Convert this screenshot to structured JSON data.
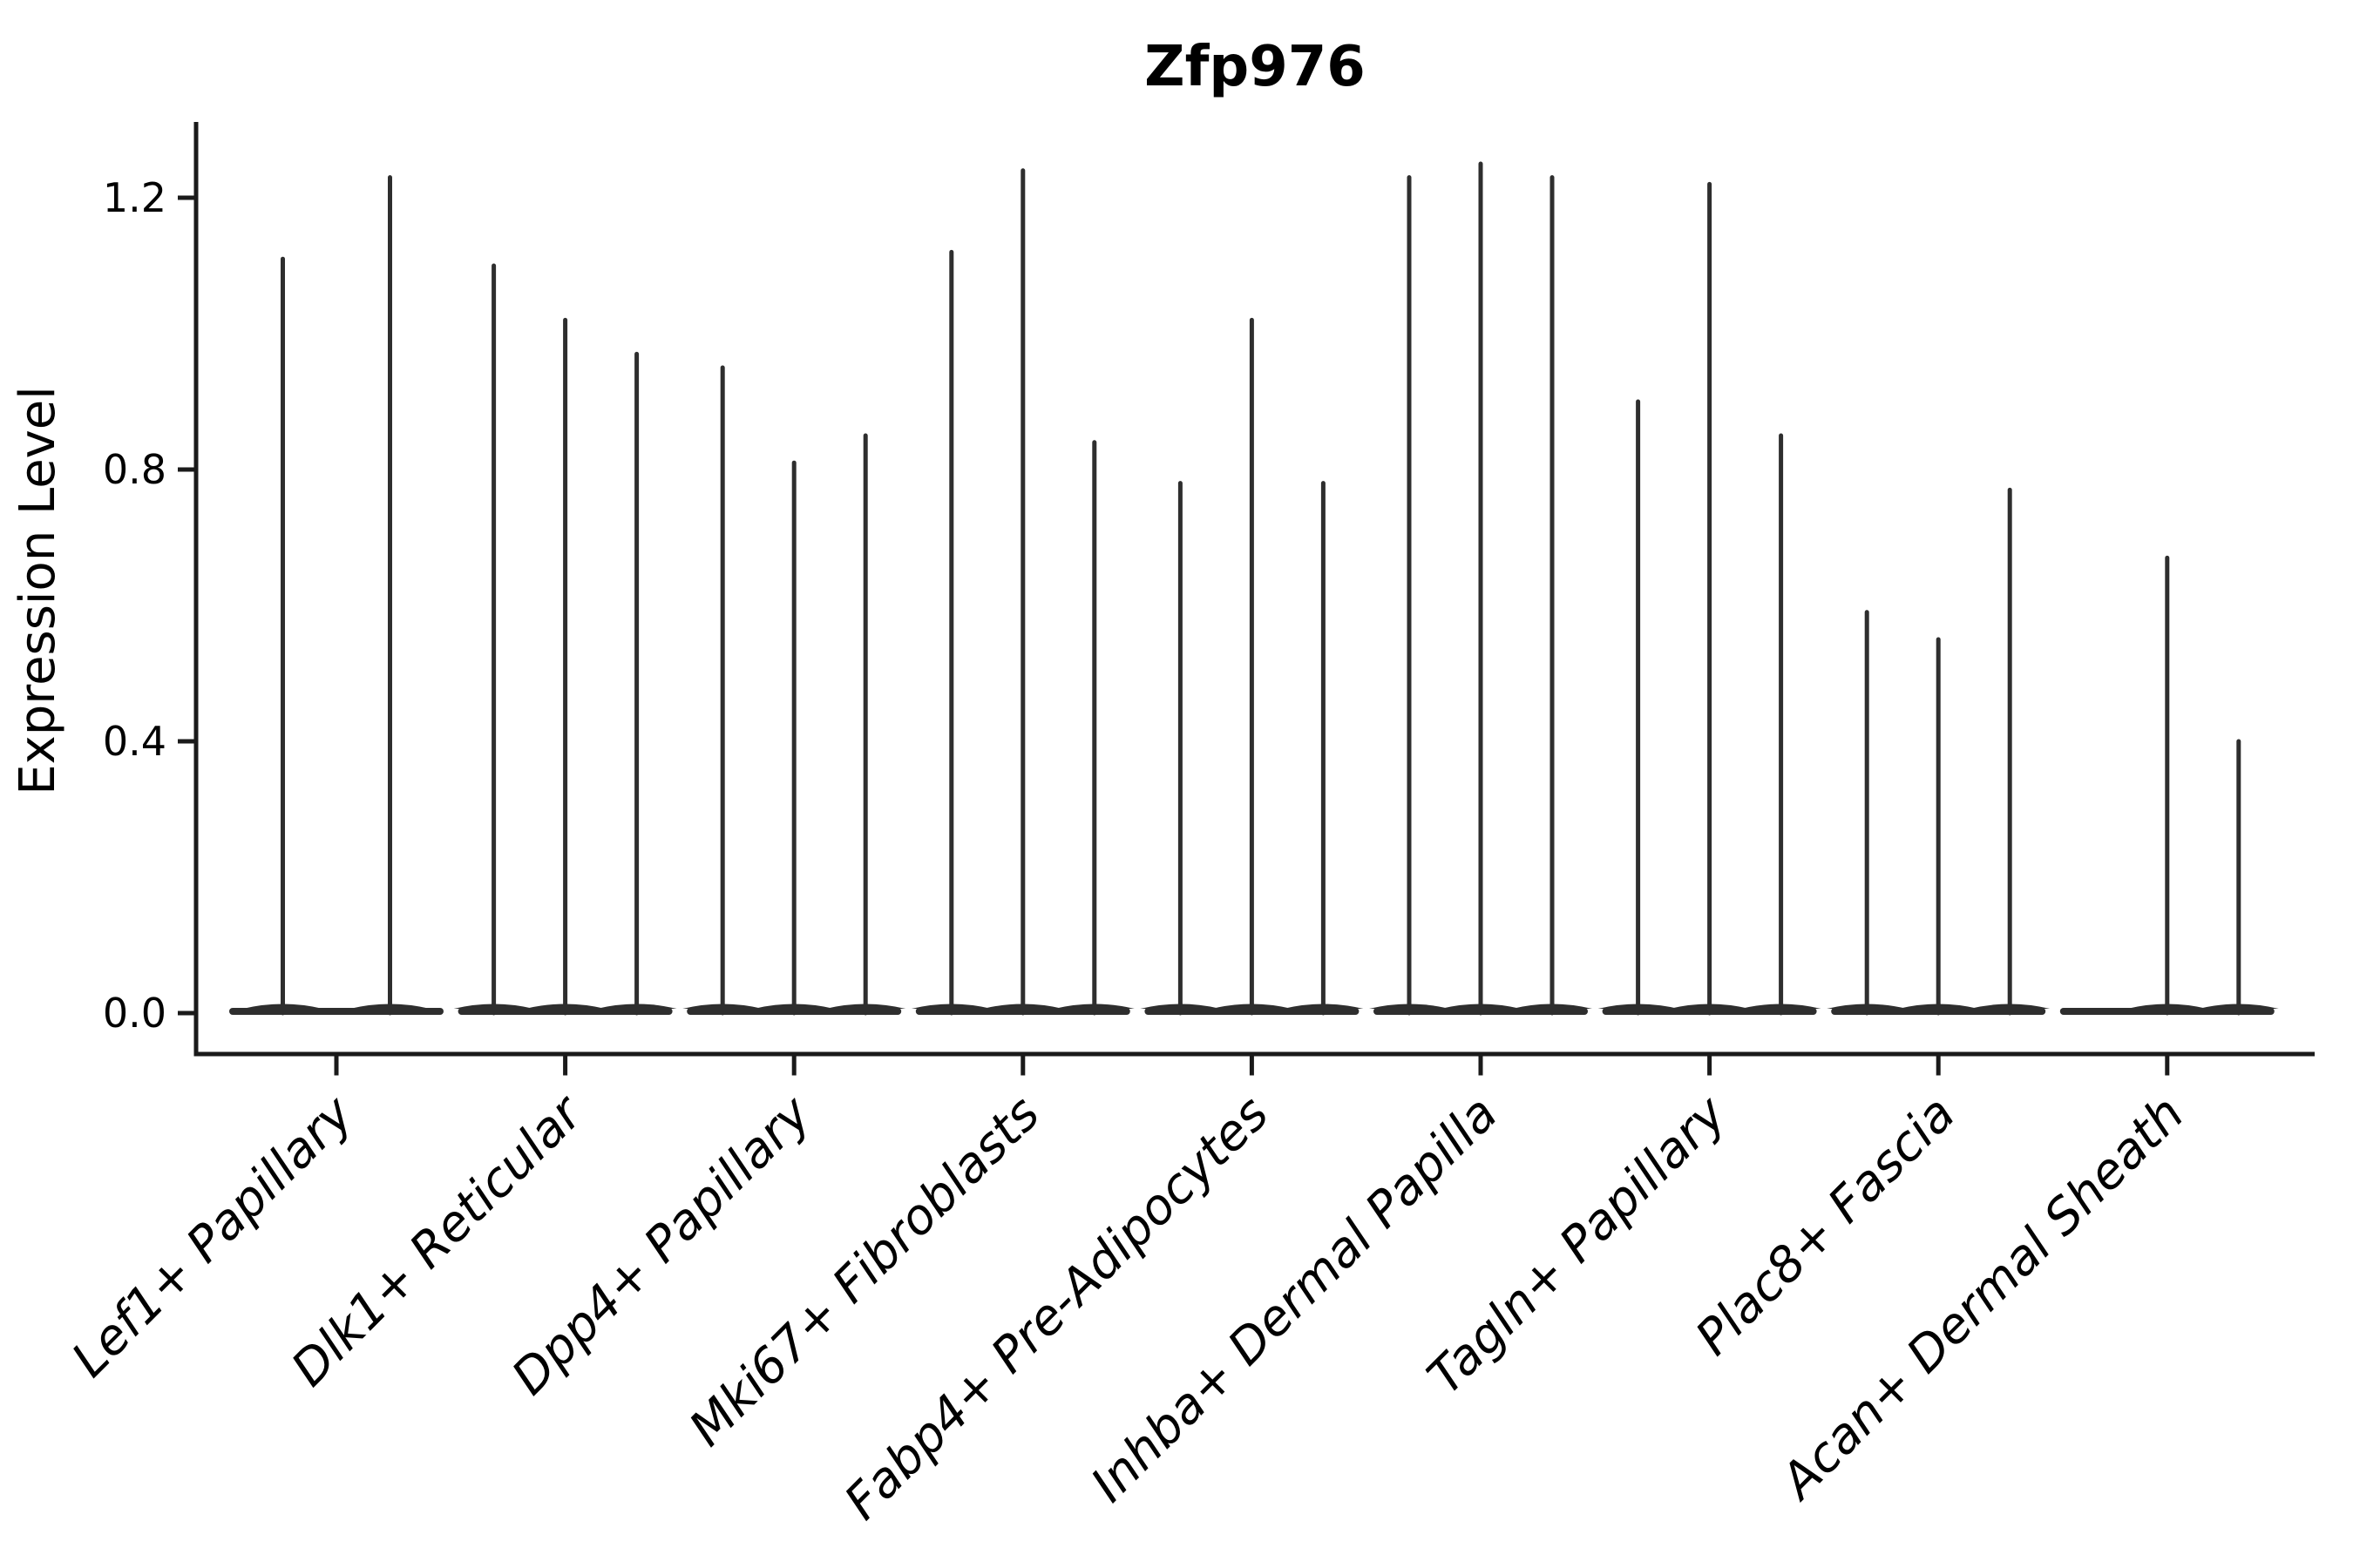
{
  "title": "Zfp976",
  "ylabel": "Expression Level",
  "colors": {
    "violin": "#2e2e2e",
    "axis": "#1a1a1a",
    "text": "#000000",
    "background": "#ffffff"
  },
  "chart_data": {
    "type": "violin",
    "title": "Zfp976",
    "xlabel": "",
    "ylabel": "Expression Level",
    "yticks": [
      0.0,
      0.4,
      0.8,
      1.2
    ],
    "ylim": [
      -0.06,
      1.31
    ],
    "grid": false,
    "legend": "none",
    "xtick_rotation_deg": 45,
    "categories": [
      "Lef1+ Papillary",
      "Dlk1+ Reticular",
      "Dpp4+ Papillary",
      "Mki67+ Fibroblasts",
      "Fabp4+ Pre-Adipocytes",
      "Inhba+ Dermal Papilla",
      "Tagln+ Papillary",
      "Plac8+ Fascia",
      "Acan+ Dermal Sheath"
    ],
    "groups": [
      {
        "label": "Lef1+ Papillary",
        "violin_max_expression": [
          1.11,
          1.23
        ]
      },
      {
        "label": "Dlk1+ Reticular",
        "violin_max_expression": [
          1.1,
          1.02,
          0.97
        ]
      },
      {
        "label": "Dpp4+ Papillary",
        "violin_max_expression": [
          0.95,
          0.81,
          0.85
        ]
      },
      {
        "label": "Mki67+ Fibroblasts",
        "violin_max_expression": [
          1.12,
          1.24,
          0.84
        ]
      },
      {
        "label": "Fabp4+ Pre-Adipocytes",
        "violin_max_expression": [
          0.78,
          1.02,
          0.78
        ]
      },
      {
        "label": "Inhba+ Dermal Papilla",
        "violin_max_expression": [
          1.23,
          1.25,
          1.23
        ]
      },
      {
        "label": "Tagln+ Papillary",
        "violin_max_expression": [
          0.9,
          1.22,
          0.85
        ]
      },
      {
        "label": "Plac8+ Fascia",
        "violin_max_expression": [
          0.59,
          0.55,
          0.77
        ]
      },
      {
        "label": "Acan+ Dermal Sheath",
        "violin_max_expression": [
          0.0,
          0.67,
          0.4
        ]
      }
    ],
    "violin_shape_note": "Violins are collapsed onto the baseline at 0 with a single thin density spike per violin reaching its max expression; a value of 0 means a flat violin with no spike."
  }
}
